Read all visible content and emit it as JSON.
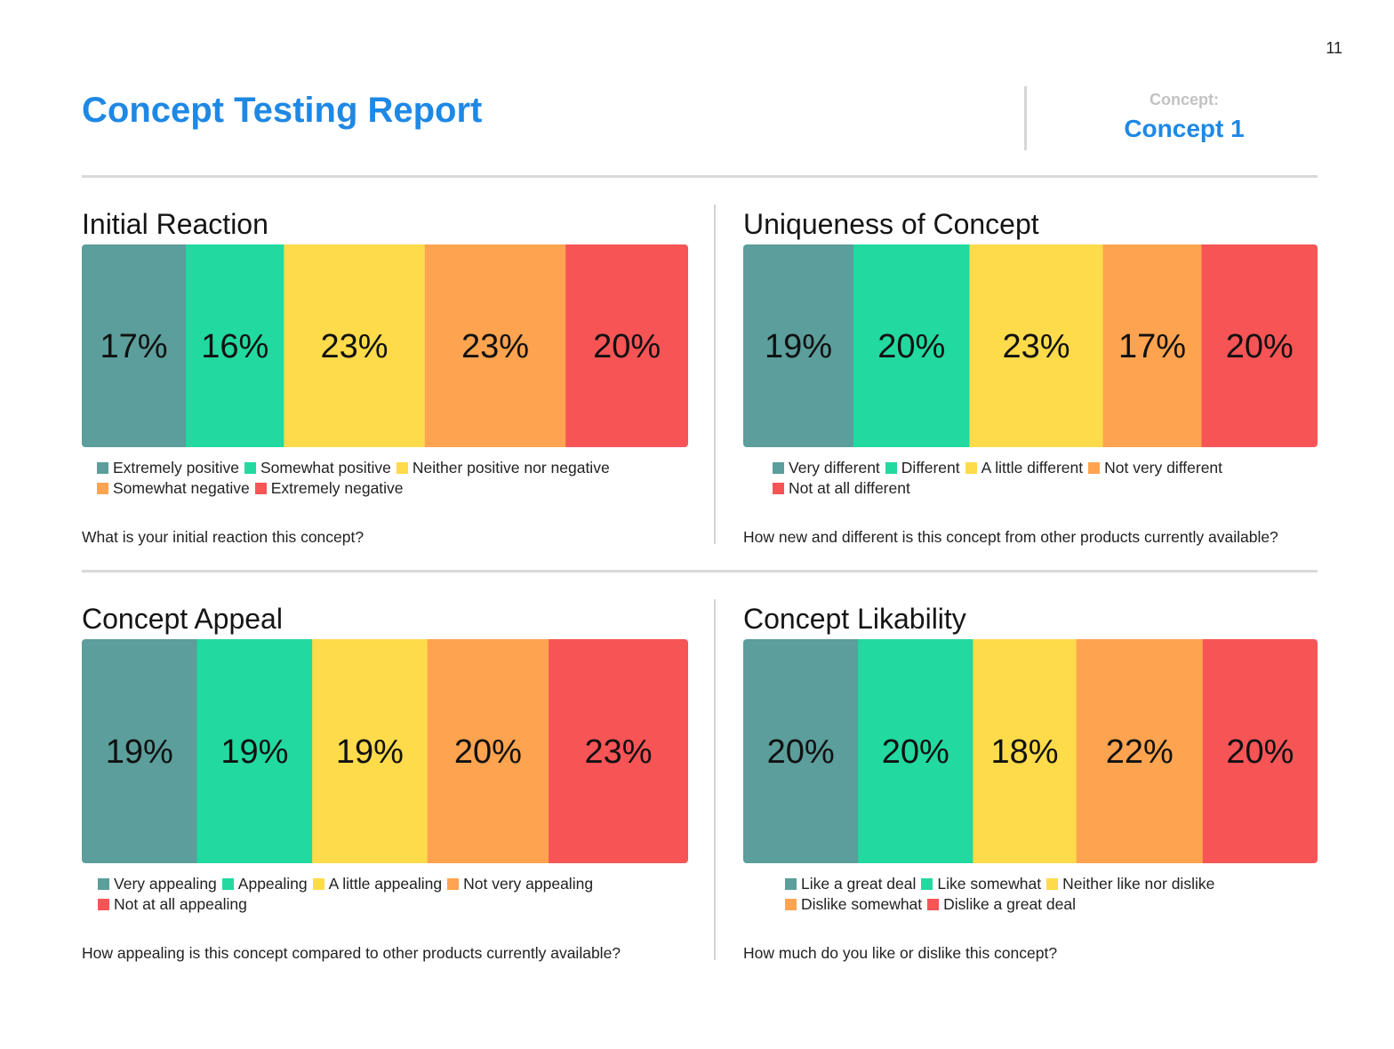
{
  "page_number": "11",
  "title": "Concept Testing Report",
  "concept": {
    "label": "Concept:",
    "value": "Concept 1"
  },
  "colors": [
    "#5b9e9b",
    "#22d9a0",
    "#fedb4a",
    "#fea34f",
    "#f75456"
  ],
  "chart_data": [
    {
      "type": "bar",
      "stacked": true,
      "orientation": "horizontal",
      "title": "Initial Reaction",
      "question": "What is your initial reaction this concept?",
      "series": [
        {
          "name": "Extremely positive",
          "value": 17,
          "label": "17%"
        },
        {
          "name": "Somewhat positive",
          "value": 16,
          "label": "16%"
        },
        {
          "name": "Neither positive nor negative",
          "value": 23,
          "label": "23%"
        },
        {
          "name": "Somewhat negative",
          "value": 23,
          "label": "23%"
        },
        {
          "name": "Extremely negative",
          "value": 20,
          "label": "20%"
        }
      ],
      "legend_position": "bottom"
    },
    {
      "type": "bar",
      "stacked": true,
      "orientation": "horizontal",
      "title": "Uniqueness of Concept",
      "question": "How new and different is this concept from other products currently available?",
      "series": [
        {
          "name": "Very different",
          "value": 19,
          "label": "19%"
        },
        {
          "name": "Different",
          "value": 20,
          "label": "20%"
        },
        {
          "name": "A little different",
          "value": 23,
          "label": "23%"
        },
        {
          "name": "Not very different",
          "value": 17,
          "label": "17%"
        },
        {
          "name": "Not at all different",
          "value": 20,
          "label": "20%"
        }
      ],
      "legend_position": "bottom"
    },
    {
      "type": "bar",
      "stacked": true,
      "orientation": "horizontal",
      "title": "Concept Appeal",
      "question": "How appealing is this concept compared to other products currently available?",
      "series": [
        {
          "name": "Very appealing",
          "value": 19,
          "label": "19%"
        },
        {
          "name": "Appealing",
          "value": 19,
          "label": "19%"
        },
        {
          "name": "A little appealing",
          "value": 19,
          "label": "19%"
        },
        {
          "name": "Not very appealing",
          "value": 20,
          "label": "20%"
        },
        {
          "name": "Not at all appealing",
          "value": 23,
          "label": "23%"
        }
      ],
      "legend_position": "bottom"
    },
    {
      "type": "bar",
      "stacked": true,
      "orientation": "horizontal",
      "title": "Concept Likability",
      "question": "How much do you like or dislike this concept?",
      "series": [
        {
          "name": "Like a great deal",
          "value": 20,
          "label": "20%"
        },
        {
          "name": "Like somewhat",
          "value": 20,
          "label": "20%"
        },
        {
          "name": "Neither like nor dislike",
          "value": 18,
          "label": "18%"
        },
        {
          "name": "Dislike somewhat",
          "value": 22,
          "label": "22%"
        },
        {
          "name": "Dislike a great deal",
          "value": 20,
          "label": "20%"
        }
      ],
      "legend_position": "bottom"
    }
  ]
}
